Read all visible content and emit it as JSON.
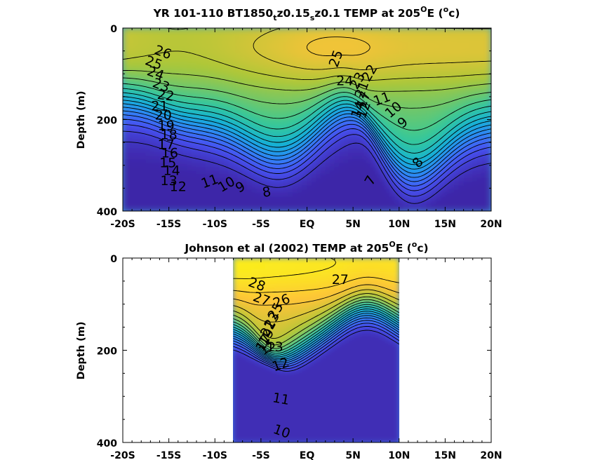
{
  "chart_data": [
    {
      "type": "heatmap",
      "title": {
        "pre": "YR 101-110 BT1850",
        "s1": "t",
        "mid1": "z0.15",
        "s2": "s",
        "mid2": "z0.1 TEMP at 205",
        "o1": "O",
        "mid3": "E (",
        "o2": "o",
        "post": "c)"
      },
      "ylabel": "Depth (m)",
      "xticks": [
        "-20S",
        "-15S",
        "-10S",
        "-5S",
        "EQ",
        "5N",
        "10N",
        "15N",
        "20N"
      ],
      "xtick_values": [
        -20,
        -15,
        -10,
        -5,
        0,
        5,
        10,
        15,
        20
      ],
      "yticks": [
        "0",
        "200",
        "400"
      ],
      "ytick_values": [
        0,
        200,
        400
      ],
      "xlim": [
        -20,
        20
      ],
      "ylim": [
        0,
        400
      ],
      "y_reversed": true,
      "data_xlim": [
        -20,
        20
      ],
      "contour_step": 1,
      "labels": [
        {
          "text": "26",
          "x": -15.8,
          "y": 62,
          "rot": 20
        },
        {
          "text": "25",
          "x": -16.8,
          "y": 85,
          "rot": 20
        },
        {
          "text": "24",
          "x": -16.6,
          "y": 108,
          "rot": 20
        },
        {
          "text": "23",
          "x": -16.0,
          "y": 134,
          "rot": 20
        },
        {
          "text": "22",
          "x": -15.4,
          "y": 157,
          "rot": 8
        },
        {
          "text": "21",
          "x": -16.0,
          "y": 180,
          "rot": 0
        },
        {
          "text": "20",
          "x": -15.6,
          "y": 200,
          "rot": 0
        },
        {
          "text": "19",
          "x": -15.3,
          "y": 223,
          "rot": 0
        },
        {
          "text": "18",
          "x": -15.0,
          "y": 243,
          "rot": 0
        },
        {
          "text": "17",
          "x": -15.3,
          "y": 264,
          "rot": 0
        },
        {
          "text": "16",
          "x": -14.9,
          "y": 283,
          "rot": 0
        },
        {
          "text": "15",
          "x": -15.1,
          "y": 304,
          "rot": 0
        },
        {
          "text": "14",
          "x": -14.7,
          "y": 321,
          "rot": 0
        },
        {
          "text": "13",
          "x": -15.0,
          "y": 343,
          "rot": 0
        },
        {
          "text": "12",
          "x": -14.0,
          "y": 356,
          "rot": 0
        },
        {
          "text": "11",
          "x": -10.4,
          "y": 344,
          "rot": -20
        },
        {
          "text": "10",
          "x": -8.5,
          "y": 350,
          "rot": -30
        },
        {
          "text": "9",
          "x": -7.0,
          "y": 356,
          "rot": -30
        },
        {
          "text": "8",
          "x": -4.3,
          "y": 368,
          "rot": -10
        },
        {
          "text": "7",
          "x": 7.3,
          "y": 338,
          "rot": -60
        },
        {
          "text": "8",
          "x": 12.4,
          "y": 300,
          "rot": -50
        },
        {
          "text": "9",
          "x": 10.7,
          "y": 214,
          "rot": -40
        },
        {
          "text": "10",
          "x": 9.7,
          "y": 186,
          "rot": -40
        },
        {
          "text": "11",
          "x": 8.3,
          "y": 164,
          "rot": -20
        },
        {
          "text": "25",
          "x": 3.6,
          "y": 70,
          "rot": -70
        },
        {
          "text": "24",
          "x": 4.1,
          "y": 125,
          "rot": 0
        },
        {
          "text": "23",
          "x": 5.9,
          "y": 120,
          "rot": -60
        },
        {
          "text": "22",
          "x": 7.2,
          "y": 103,
          "rot": -60
        },
        {
          "text": "21",
          "x": 6.4,
          "y": 138,
          "rot": -70
        },
        {
          "text": "17",
          "x": 6.6,
          "y": 160,
          "rot": -70
        },
        {
          "text": "14",
          "x": 6.0,
          "y": 182,
          "rot": -70
        },
        {
          "text": "12",
          "x": 6.6,
          "y": 182,
          "rot": -70
        }
      ]
    },
    {
      "type": "heatmap",
      "title": {
        "pre": "Johnson et al (2002) TEMP at 205",
        "o1": "O",
        "mid1": "E (",
        "o2": "o",
        "post": "c)"
      },
      "ylabel": "Depth (m)",
      "xticks": [
        "-20S",
        "-15S",
        "-10S",
        "-5S",
        "EQ",
        "5N",
        "10N",
        "15N",
        "20N"
      ],
      "xtick_values": [
        -20,
        -15,
        -10,
        -5,
        0,
        5,
        10,
        15,
        20
      ],
      "yticks": [
        "0",
        "200",
        "400"
      ],
      "ytick_values": [
        0,
        200,
        400
      ],
      "xlim": [
        -20,
        20
      ],
      "ylim": [
        0,
        400
      ],
      "y_reversed": true,
      "data_xlim": [
        -8,
        10
      ],
      "contour_step": 1,
      "labels": [
        {
          "text": "28",
          "x": -5.6,
          "y": 66,
          "rot": 20
        },
        {
          "text": "27",
          "x": -5.1,
          "y": 98,
          "rot": 20
        },
        {
          "text": "26",
          "x": -2.6,
          "y": 102,
          "rot": -20
        },
        {
          "text": "27",
          "x": 3.6,
          "y": 56,
          "rot": 0
        },
        {
          "text": "25",
          "x": -3.0,
          "y": 120,
          "rot": -60
        },
        {
          "text": "23",
          "x": -3.4,
          "y": 140,
          "rot": -60
        },
        {
          "text": "21",
          "x": -3.8,
          "y": 158,
          "rot": -60
        },
        {
          "text": "19",
          "x": -4.0,
          "y": 176,
          "rot": -60
        },
        {
          "text": "17",
          "x": -4.3,
          "y": 188,
          "rot": -60
        },
        {
          "text": "15",
          "x": -4.0,
          "y": 200,
          "rot": -40
        },
        {
          "text": "13",
          "x": -3.5,
          "y": 202,
          "rot": 0
        },
        {
          "text": "12",
          "x": -2.7,
          "y": 240,
          "rot": -20
        },
        {
          "text": "11",
          "x": -2.9,
          "y": 315,
          "rot": 10
        },
        {
          "text": "10",
          "x": -2.9,
          "y": 385,
          "rot": 20
        }
      ]
    }
  ]
}
